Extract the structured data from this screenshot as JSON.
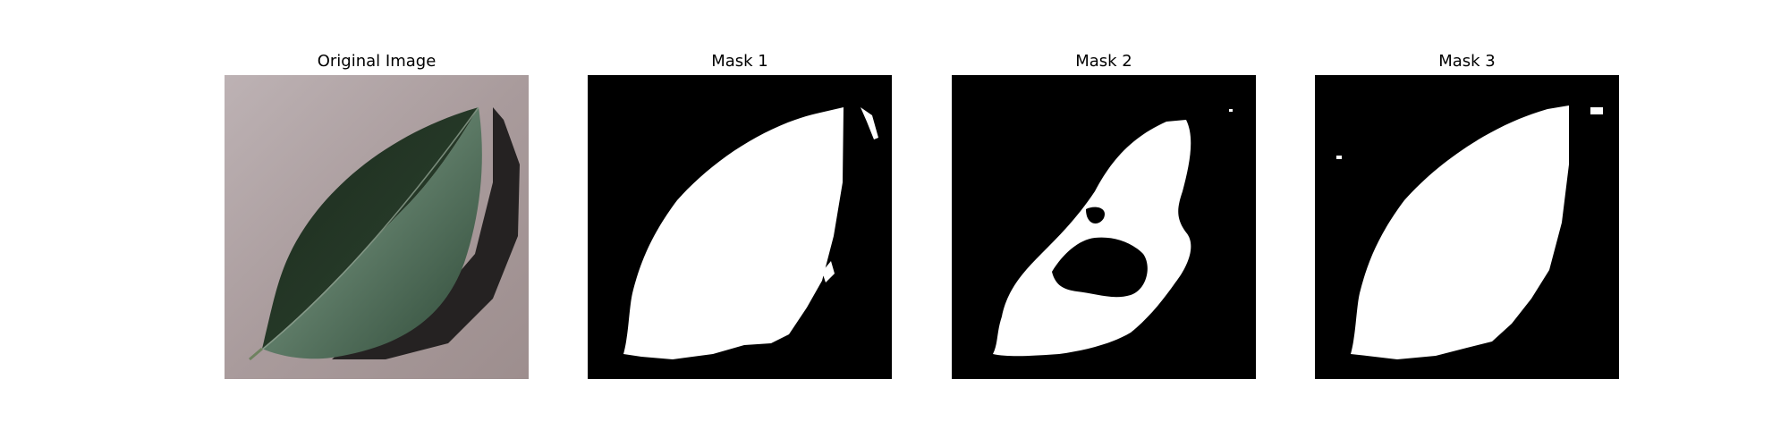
{
  "panels": [
    {
      "title": "Original Image"
    },
    {
      "title": "Mask 1"
    },
    {
      "title": "Mask 2"
    },
    {
      "title": "Mask 3"
    }
  ],
  "colors": {
    "background": "#ffffff",
    "mask_background": "#000000",
    "mask_foreground": "#ffffff",
    "leaf_dark": "#1f3322",
    "leaf_light": "#4d6b55",
    "surface": "#a89a9b"
  }
}
